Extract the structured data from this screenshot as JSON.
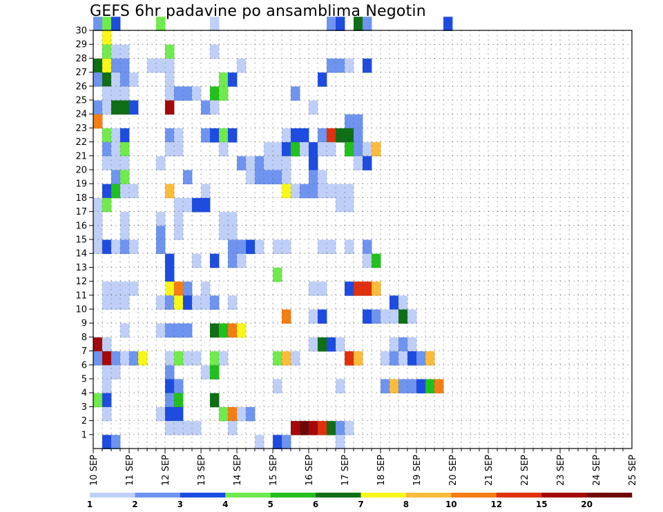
{
  "chart_data": {
    "type": "heatmap",
    "title": "GEFS 6hr padavine po ansamblima Negotin",
    "x_ticks": [
      "10 SEP",
      "11 SEP",
      "12 SEP",
      "13 SEP",
      "14 SEP",
      "15 SEP",
      "16 SEP",
      "17 SEP",
      "18 SEP",
      "19 SEP",
      "20 SEP",
      "21 SEP",
      "22 SEP",
      "23 SEP",
      "24 SEP",
      "25 SEP"
    ],
    "y_ticks": [
      "1",
      "2",
      "3",
      "4",
      "5",
      "6",
      "7",
      "8",
      "9",
      "10",
      "11",
      "12",
      "13",
      "14",
      "15",
      "16",
      "17",
      "18",
      "19",
      "20",
      "21",
      "22",
      "23",
      "24",
      "25",
      "26",
      "27",
      "28",
      "29",
      "30"
    ],
    "x_step": "6h",
    "xlim": [
      "10 SEP",
      "25 SEP"
    ],
    "ylim": [
      0,
      30
    ],
    "grid": true,
    "colorbar": {
      "labels": [
        "1",
        "2",
        "3",
        "4",
        "5",
        "6",
        "7",
        "8",
        "10",
        "12",
        "15",
        "20"
      ],
      "colors": [
        "#bfcff7",
        "#6e94ef",
        "#1e4ce0",
        "#70ea4d",
        "#22c01c",
        "#0f6e16",
        "#f7f71a",
        "#fbbb3b",
        "#f57e14",
        "#e0300c",
        "#a40808",
        "#6e0808"
      ]
    },
    "cells": [
      [
        0,
        30,
        1
      ],
      [
        1,
        30,
        3
      ],
      [
        2,
        30,
        2
      ],
      [
        7,
        30,
        3
      ],
      [
        13,
        30,
        0
      ],
      [
        26,
        30,
        1
      ],
      [
        27,
        30,
        2
      ],
      [
        29,
        30,
        5
      ],
      [
        30,
        30,
        1
      ],
      [
        39,
        30,
        2
      ],
      [
        1,
        29,
        6
      ],
      [
        1,
        28,
        3
      ],
      [
        2,
        28,
        0
      ],
      [
        3,
        28,
        0
      ],
      [
        8,
        28,
        3
      ],
      [
        13,
        28,
        0
      ],
      [
        0,
        27,
        5
      ],
      [
        1,
        27,
        6
      ],
      [
        2,
        27,
        1
      ],
      [
        3,
        27,
        1
      ],
      [
        6,
        27,
        0
      ],
      [
        7,
        27,
        0
      ],
      [
        8,
        27,
        0
      ],
      [
        16,
        27,
        0
      ],
      [
        26,
        27,
        1
      ],
      [
        27,
        27,
        1
      ],
      [
        28,
        27,
        0
      ],
      [
        30,
        27,
        2
      ],
      [
        0,
        26,
        1
      ],
      [
        1,
        26,
        5
      ],
      [
        2,
        26,
        0
      ],
      [
        3,
        26,
        1
      ],
      [
        4,
        26,
        0
      ],
      [
        8,
        26,
        0
      ],
      [
        14,
        26,
        3
      ],
      [
        15,
        26,
        2
      ],
      [
        25,
        26,
        2
      ],
      [
        1,
        25,
        0
      ],
      [
        2,
        25,
        0
      ],
      [
        3,
        25,
        0
      ],
      [
        8,
        25,
        0
      ],
      [
        9,
        25,
        1
      ],
      [
        10,
        25,
        1
      ],
      [
        11,
        25,
        0
      ],
      [
        13,
        25,
        4
      ],
      [
        14,
        25,
        3
      ],
      [
        22,
        25,
        1
      ],
      [
        0,
        24,
        1
      ],
      [
        1,
        24,
        0
      ],
      [
        2,
        24,
        5
      ],
      [
        3,
        24,
        5
      ],
      [
        4,
        24,
        2
      ],
      [
        8,
        24,
        10
      ],
      [
        12,
        24,
        1
      ],
      [
        13,
        24,
        0
      ],
      [
        24,
        24,
        0
      ],
      [
        0,
        23,
        8
      ],
      [
        28,
        23,
        1
      ],
      [
        29,
        23,
        1
      ],
      [
        1,
        22,
        3
      ],
      [
        2,
        22,
        0
      ],
      [
        3,
        22,
        2
      ],
      [
        8,
        22,
        1
      ],
      [
        9,
        22,
        0
      ],
      [
        12,
        22,
        1
      ],
      [
        13,
        22,
        2
      ],
      [
        14,
        22,
        3
      ],
      [
        15,
        22,
        2
      ],
      [
        21,
        22,
        0
      ],
      [
        22,
        22,
        2
      ],
      [
        23,
        22,
        2
      ],
      [
        25,
        22,
        1
      ],
      [
        26,
        22,
        9
      ],
      [
        27,
        22,
        5
      ],
      [
        28,
        22,
        5
      ],
      [
        29,
        22,
        1
      ],
      [
        1,
        21,
        1
      ],
      [
        2,
        21,
        0
      ],
      [
        3,
        21,
        3
      ],
      [
        8,
        21,
        0
      ],
      [
        9,
        21,
        0
      ],
      [
        14,
        21,
        0
      ],
      [
        19,
        21,
        0
      ],
      [
        20,
        21,
        0
      ],
      [
        21,
        21,
        2
      ],
      [
        22,
        21,
        4
      ],
      [
        23,
        21,
        0
      ],
      [
        24,
        21,
        2
      ],
      [
        25,
        21,
        0
      ],
      [
        26,
        21,
        0
      ],
      [
        28,
        21,
        4
      ],
      [
        29,
        21,
        1
      ],
      [
        30,
        21,
        0
      ],
      [
        31,
        21,
        7
      ],
      [
        1,
        20,
        0
      ],
      [
        2,
        20,
        0
      ],
      [
        3,
        20,
        0
      ],
      [
        7,
        20,
        0
      ],
      [
        16,
        20,
        1
      ],
      [
        17,
        20,
        0
      ],
      [
        18,
        20,
        1
      ],
      [
        19,
        20,
        0
      ],
      [
        20,
        20,
        0
      ],
      [
        21,
        20,
        0
      ],
      [
        24,
        20,
        2
      ],
      [
        29,
        20,
        0
      ],
      [
        30,
        20,
        2
      ],
      [
        2,
        19,
        1
      ],
      [
        3,
        19,
        3
      ],
      [
        10,
        19,
        1
      ],
      [
        17,
        19,
        0
      ],
      [
        18,
        19,
        1
      ],
      [
        19,
        19,
        1
      ],
      [
        20,
        19,
        1
      ],
      [
        21,
        19,
        0
      ],
      [
        24,
        19,
        1
      ],
      [
        25,
        19,
        0
      ],
      [
        1,
        18,
        2
      ],
      [
        2,
        18,
        4
      ],
      [
        3,
        18,
        0
      ],
      [
        4,
        18,
        0
      ],
      [
        8,
        18,
        7
      ],
      [
        12,
        18,
        0
      ],
      [
        21,
        18,
        6
      ],
      [
        22,
        18,
        0
      ],
      [
        23,
        18,
        1
      ],
      [
        24,
        18,
        1
      ],
      [
        25,
        18,
        0
      ],
      [
        26,
        18,
        0
      ],
      [
        27,
        18,
        0
      ],
      [
        28,
        18,
        0
      ],
      [
        0,
        17,
        0
      ],
      [
        1,
        17,
        3
      ],
      [
        9,
        17,
        0
      ],
      [
        10,
        17,
        0
      ],
      [
        11,
        17,
        2
      ],
      [
        12,
        17,
        2
      ],
      [
        27,
        17,
        0
      ],
      [
        28,
        17,
        0
      ],
      [
        0,
        16,
        0
      ],
      [
        3,
        16,
        0
      ],
      [
        7,
        16,
        0
      ],
      [
        9,
        16,
        0
      ],
      [
        14,
        16,
        0
      ],
      [
        15,
        16,
        0
      ],
      [
        0,
        15,
        0
      ],
      [
        3,
        15,
        0
      ],
      [
        7,
        15,
        1
      ],
      [
        9,
        15,
        0
      ],
      [
        14,
        15,
        0
      ],
      [
        15,
        15,
        0
      ],
      [
        0,
        14,
        0
      ],
      [
        1,
        14,
        2
      ],
      [
        2,
        14,
        0
      ],
      [
        3,
        14,
        1
      ],
      [
        4,
        14,
        0
      ],
      [
        7,
        14,
        1
      ],
      [
        15,
        14,
        1
      ],
      [
        16,
        14,
        1
      ],
      [
        17,
        14,
        2
      ],
      [
        18,
        14,
        0
      ],
      [
        20,
        14,
        0
      ],
      [
        21,
        14,
        0
      ],
      [
        25,
        14,
        0
      ],
      [
        26,
        14,
        0
      ],
      [
        28,
        14,
        0
      ],
      [
        30,
        14,
        1
      ],
      [
        8,
        13,
        2
      ],
      [
        11,
        13,
        0
      ],
      [
        13,
        13,
        2
      ],
      [
        15,
        13,
        1
      ],
      [
        16,
        13,
        0
      ],
      [
        30,
        13,
        0
      ],
      [
        31,
        13,
        4
      ],
      [
        8,
        12,
        2
      ],
      [
        20,
        12,
        3
      ],
      [
        1,
        11,
        0
      ],
      [
        2,
        11,
        0
      ],
      [
        3,
        11,
        0
      ],
      [
        4,
        11,
        0
      ],
      [
        8,
        11,
        6
      ],
      [
        9,
        11,
        8
      ],
      [
        10,
        11,
        1
      ],
      [
        12,
        11,
        0
      ],
      [
        24,
        11,
        0
      ],
      [
        25,
        11,
        0
      ],
      [
        28,
        11,
        2
      ],
      [
        29,
        11,
        9
      ],
      [
        30,
        11,
        9
      ],
      [
        31,
        11,
        7
      ],
      [
        1,
        10,
        0
      ],
      [
        2,
        10,
        0
      ],
      [
        3,
        10,
        0
      ],
      [
        7,
        10,
        0
      ],
      [
        8,
        10,
        1
      ],
      [
        9,
        10,
        6
      ],
      [
        10,
        10,
        2
      ],
      [
        11,
        10,
        0
      ],
      [
        12,
        10,
        0
      ],
      [
        13,
        10,
        1
      ],
      [
        15,
        10,
        0
      ],
      [
        33,
        10,
        2
      ],
      [
        34,
        10,
        0
      ],
      [
        21,
        9,
        8
      ],
      [
        24,
        9,
        0
      ],
      [
        25,
        9,
        2
      ],
      [
        30,
        9,
        2
      ],
      [
        31,
        9,
        1
      ],
      [
        32,
        9,
        0
      ],
      [
        33,
        9,
        0
      ],
      [
        34,
        9,
        5
      ],
      [
        35,
        9,
        0
      ],
      [
        3,
        8,
        0
      ],
      [
        7,
        8,
        0
      ],
      [
        8,
        8,
        1
      ],
      [
        9,
        8,
        1
      ],
      [
        10,
        8,
        1
      ],
      [
        13,
        8,
        5
      ],
      [
        14,
        8,
        4
      ],
      [
        15,
        8,
        8
      ],
      [
        16,
        8,
        6
      ],
      [
        0,
        7,
        10
      ],
      [
        1,
        7,
        0
      ],
      [
        24,
        7,
        0
      ],
      [
        25,
        7,
        5
      ],
      [
        26,
        7,
        2
      ],
      [
        27,
        7,
        0
      ],
      [
        33,
        7,
        0
      ],
      [
        34,
        7,
        1
      ],
      [
        35,
        7,
        0
      ],
      [
        0,
        6,
        1
      ],
      [
        1,
        6,
        10
      ],
      [
        2,
        6,
        1
      ],
      [
        3,
        6,
        0
      ],
      [
        4,
        6,
        1
      ],
      [
        5,
        6,
        6
      ],
      [
        8,
        6,
        0
      ],
      [
        9,
        6,
        3
      ],
      [
        10,
        6,
        0
      ],
      [
        11,
        6,
        0
      ],
      [
        13,
        6,
        3
      ],
      [
        14,
        6,
        0
      ],
      [
        20,
        6,
        3
      ],
      [
        21,
        6,
        7
      ],
      [
        22,
        6,
        0
      ],
      [
        28,
        6,
        9
      ],
      [
        29,
        6,
        7
      ],
      [
        32,
        6,
        0
      ],
      [
        33,
        6,
        1
      ],
      [
        34,
        6,
        0
      ],
      [
        35,
        6,
        2
      ],
      [
        36,
        6,
        1
      ],
      [
        37,
        6,
        7
      ],
      [
        1,
        5,
        0
      ],
      [
        2,
        5,
        0
      ],
      [
        8,
        5,
        1
      ],
      [
        12,
        5,
        0
      ],
      [
        13,
        5,
        4
      ],
      [
        1,
        4,
        0
      ],
      [
        8,
        4,
        2
      ],
      [
        9,
        4,
        1
      ],
      [
        20,
        4,
        0
      ],
      [
        27,
        4,
        0
      ],
      [
        32,
        4,
        1
      ],
      [
        33,
        4,
        7
      ],
      [
        34,
        4,
        1
      ],
      [
        35,
        4,
        1
      ],
      [
        36,
        4,
        2
      ],
      [
        37,
        4,
        4
      ],
      [
        38,
        4,
        8
      ],
      [
        0,
        3,
        3
      ],
      [
        1,
        3,
        2
      ],
      [
        8,
        3,
        1
      ],
      [
        9,
        3,
        4
      ],
      [
        13,
        3,
        5
      ],
      [
        1,
        2,
        0
      ],
      [
        7,
        2,
        0
      ],
      [
        8,
        2,
        2
      ],
      [
        9,
        2,
        2
      ],
      [
        14,
        2,
        3
      ],
      [
        15,
        2,
        8
      ],
      [
        16,
        2,
        0
      ],
      [
        17,
        2,
        1
      ],
      [
        8,
        1,
        0
      ],
      [
        9,
        1,
        0
      ],
      [
        10,
        1,
        0
      ],
      [
        11,
        1,
        0
      ],
      [
        15,
        1,
        0
      ],
      [
        22,
        1,
        10
      ],
      [
        23,
        1,
        11
      ],
      [
        24,
        1,
        10
      ],
      [
        25,
        1,
        9
      ],
      [
        26,
        1,
        5
      ],
      [
        27,
        1,
        1
      ],
      [
        28,
        1,
        0
      ],
      [
        1,
        0,
        2
      ],
      [
        2,
        0,
        1
      ],
      [
        18,
        0,
        0
      ],
      [
        20,
        0,
        2
      ],
      [
        21,
        0,
        1
      ],
      [
        27,
        0,
        0
      ]
    ]
  }
}
